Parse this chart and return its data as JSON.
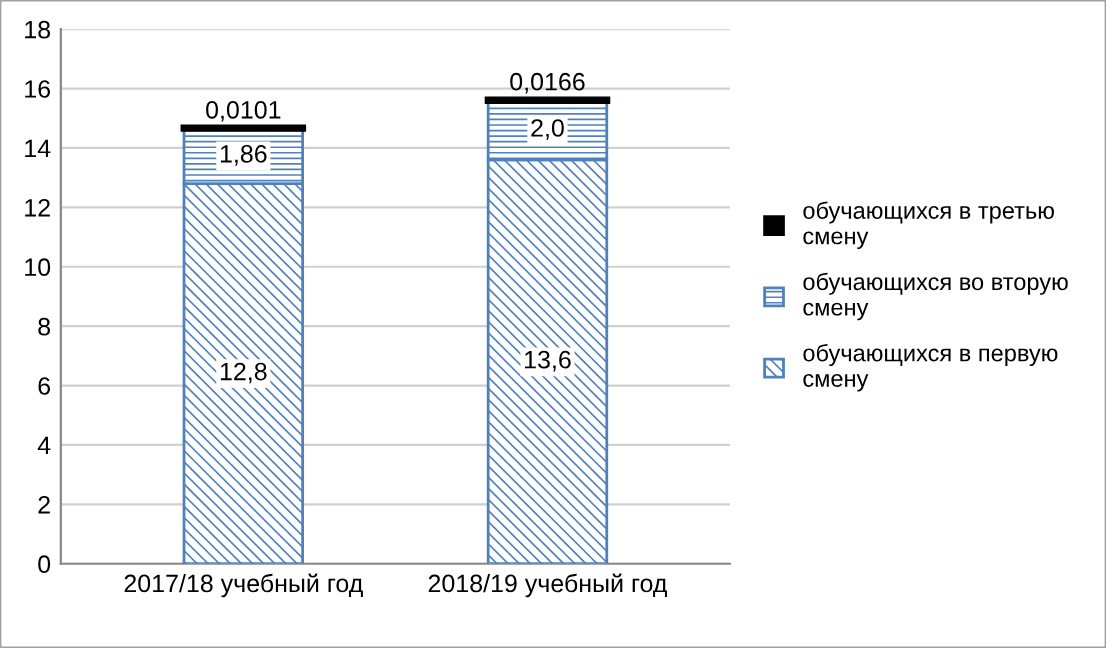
{
  "chart_data": {
    "type": "bar",
    "stacked": true,
    "categories": [
      "2017/18 учебный год",
      "2018/19 учебный год"
    ],
    "series": [
      {
        "name": "обучающихся в первую смену",
        "color": "#4f81bd",
        "values": [
          12.8,
          13.6
        ],
        "value_labels": [
          "12,8",
          "13,6"
        ]
      },
      {
        "name": "обучающихся во вторую смену",
        "color": "#4f81bd",
        "values": [
          1.86,
          2.0
        ],
        "value_labels": [
          "1,86",
          "2,0"
        ]
      },
      {
        "name": "обучающихся в третью смену",
        "color": "#000000",
        "values": [
          0.0101,
          0.0166
        ],
        "value_labels": [
          "0,0101",
          "0,0166"
        ]
      }
    ],
    "ylim": [
      0,
      18
    ],
    "yticks": [
      0,
      2,
      4,
      6,
      8,
      10,
      12,
      14,
      16,
      18
    ],
    "grid": "y",
    "legend": "right"
  }
}
